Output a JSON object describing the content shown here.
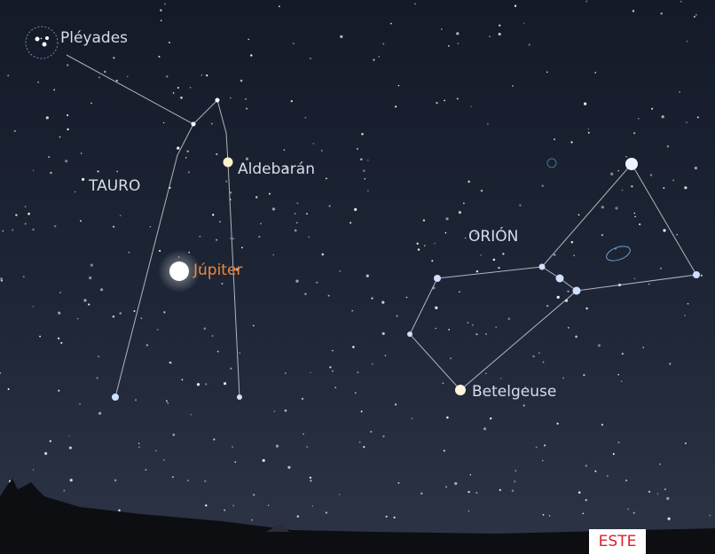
{
  "labels": {
    "pleiades": "Pléyades",
    "taurus": "TAURO",
    "aldebaran": "Aldebarán",
    "jupiter": "Júpiter",
    "orion": "ORIÓN",
    "betelgeuse": "Betelgeuse",
    "direction": "ESTE"
  }
}
